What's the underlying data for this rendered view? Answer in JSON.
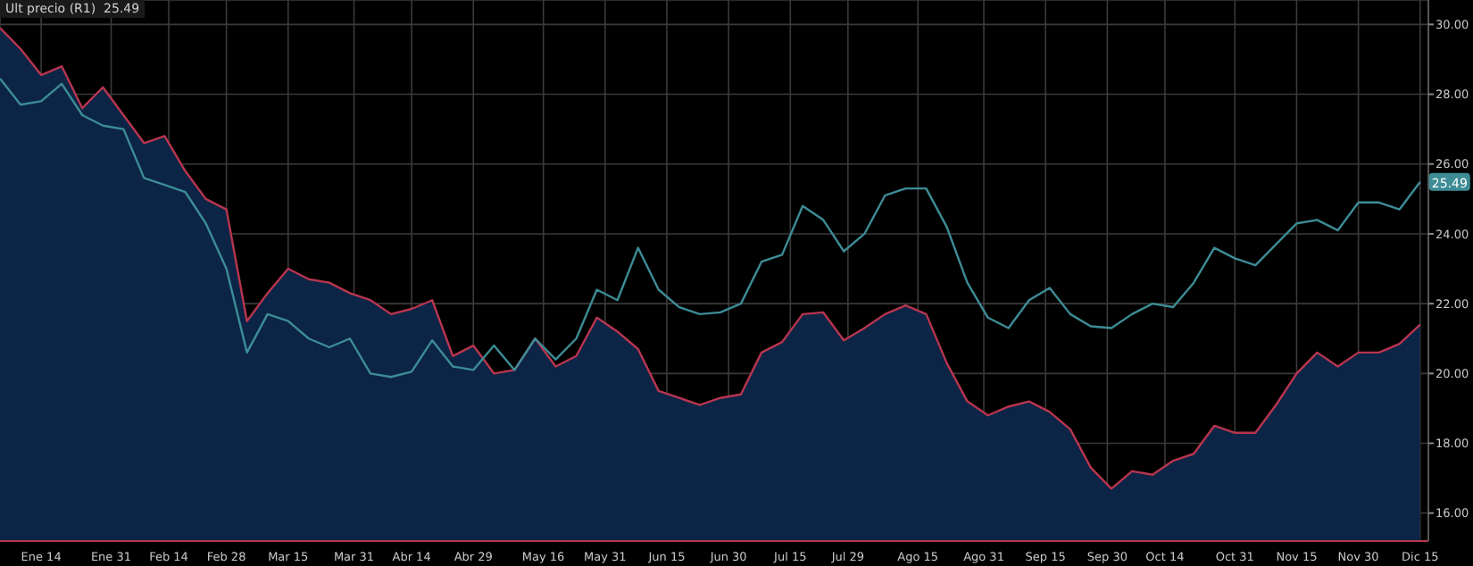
{
  "chart_data": {
    "type": "area",
    "x": [
      "--01-04",
      "--01-09",
      "--01-14",
      "--01-19",
      "--01-24",
      "--01-29",
      "--02-03",
      "--02-08",
      "--02-13",
      "--02-18",
      "--02-23",
      "--02-28",
      "--03-05",
      "--03-10",
      "--03-15",
      "--03-20",
      "--03-25",
      "--03-30",
      "--04-04",
      "--04-09",
      "--04-14",
      "--04-19",
      "--04-24",
      "--04-29",
      "--05-04",
      "--05-09",
      "--05-14",
      "--05-19",
      "--05-24",
      "--05-29",
      "--06-03",
      "--06-08",
      "--06-13",
      "--06-18",
      "--06-23",
      "--06-28",
      "--07-03",
      "--07-08",
      "--07-13",
      "--07-18",
      "--07-23",
      "--07-28",
      "--08-02",
      "--08-07",
      "--08-12",
      "--08-17",
      "--08-22",
      "--08-27",
      "--09-01",
      "--09-06",
      "--09-11",
      "--09-16",
      "--09-21",
      "--09-26",
      "--10-01",
      "--10-06",
      "--10-11",
      "--10-16",
      "--10-21",
      "--10-26",
      "--10-31",
      "--11-05",
      "--11-10",
      "--11-15",
      "--11-20",
      "--11-25",
      "--11-30",
      "--12-05",
      "--12-10",
      "--12-15"
    ],
    "series": [
      {
        "color": "#0c2445",
        "values": [
          29.9,
          29.3,
          28.55,
          28.8,
          27.6,
          28.2,
          27.4,
          26.6,
          26.8,
          25.8,
          25.0,
          24.7,
          21.5,
          22.3,
          23.0,
          22.7,
          22.6,
          22.3,
          22.1,
          21.7,
          21.85,
          22.1,
          20.5,
          20.8,
          20.0,
          20.1,
          21.0,
          20.2,
          20.5,
          21.6,
          21.2,
          20.7,
          19.5,
          19.3,
          19.1,
          19.3,
          19.4,
          20.6,
          20.9,
          21.7,
          21.75,
          20.95,
          21.3,
          21.7,
          21.95,
          21.7,
          20.3,
          19.2,
          18.8,
          19.05,
          19.2,
          18.9,
          18.4,
          17.3,
          16.7,
          17.2,
          17.1,
          17.5,
          17.7,
          18.5,
          18.3,
          18.3,
          19.1,
          20.0,
          20.6,
          20.2,
          20.6,
          20.6,
          20.85,
          21.4
        ]
      },
      {
        "type": "line",
        "color": "#b8354f",
        "values": [
          29.9,
          29.3,
          28.55,
          28.8,
          27.6,
          28.2,
          27.4,
          26.6,
          26.8,
          25.8,
          25.0,
          24.7,
          21.5,
          22.3,
          23.0,
          22.7,
          22.6,
          22.3,
          22.1,
          21.7,
          21.85,
          22.1,
          20.5,
          20.8,
          20.0,
          20.1,
          21.0,
          20.2,
          20.5,
          21.6,
          21.2,
          20.7,
          19.5,
          19.3,
          19.1,
          19.3,
          19.4,
          20.6,
          20.9,
          21.7,
          21.75,
          20.95,
          21.3,
          21.7,
          21.95,
          21.7,
          20.3,
          19.2,
          18.8,
          19.05,
          19.2,
          18.9,
          18.4,
          17.3,
          16.7,
          17.2,
          17.1,
          17.5,
          17.7,
          18.5,
          18.3,
          18.3,
          19.1,
          20.0,
          20.6,
          20.2,
          20.6,
          20.6,
          20.85,
          21.4
        ]
      },
      {
        "type": "line",
        "color": "#3d8c96",
        "values": [
          28.45,
          27.7,
          27.8,
          28.3,
          27.4,
          27.1,
          27.0,
          25.6,
          25.4,
          25.2,
          24.3,
          23.0,
          20.6,
          21.7,
          21.5,
          21.0,
          20.75,
          21.0,
          20.0,
          19.9,
          20.05,
          20.95,
          20.2,
          20.1,
          20.8,
          20.1,
          21.0,
          20.4,
          21.0,
          22.4,
          22.1,
          23.6,
          22.4,
          21.9,
          21.7,
          21.75,
          22.0,
          23.2,
          23.4,
          24.8,
          24.4,
          23.5,
          24.0,
          25.1,
          25.3,
          25.3,
          24.2,
          22.6,
          21.6,
          21.3,
          22.1,
          22.45,
          21.7,
          21.35,
          21.3,
          21.7,
          22.0,
          21.9,
          22.6,
          23.6,
          23.3,
          23.1,
          23.7,
          24.3,
          24.4,
          24.1,
          24.9,
          24.9,
          24.7,
          25.49
        ]
      }
    ],
    "xlim": [
      "--01-04",
      "--12-17"
    ],
    "xticks": [
      {
        "value": "--01-14",
        "label": "Ene 14"
      },
      {
        "value": "--01-31",
        "label": "Ene 31"
      },
      {
        "value": "--02-14",
        "label": "Feb 14"
      },
      {
        "value": "--02-28",
        "label": "Feb 28"
      },
      {
        "value": "--03-15",
        "label": "Mar 15"
      },
      {
        "value": "--03-31",
        "label": "Mar 31"
      },
      {
        "value": "--04-14",
        "label": "Abr 14"
      },
      {
        "value": "--04-29",
        "label": "Abr 29"
      },
      {
        "value": "--05-16",
        "label": "May 16"
      },
      {
        "value": "--05-31",
        "label": "May 31"
      },
      {
        "value": "--06-15",
        "label": "Jun 15"
      },
      {
        "value": "--06-30",
        "label": "Jun 30"
      },
      {
        "value": "--07-15",
        "label": "Jul 15"
      },
      {
        "value": "--07-29",
        "label": "Jul 29"
      },
      {
        "value": "--08-15",
        "label": "Ago 15"
      },
      {
        "value": "--08-31",
        "label": "Ago 31"
      },
      {
        "value": "--09-15",
        "label": "Sep 15"
      },
      {
        "value": "--09-30",
        "label": "Sep 30"
      },
      {
        "value": "--10-14",
        "label": "Oct 14"
      },
      {
        "value": "--10-31",
        "label": "Oct 31"
      },
      {
        "value": "--11-15",
        "label": "Nov 15"
      },
      {
        "value": "--11-30",
        "label": "Nov 30"
      },
      {
        "value": "--12-15",
        "label": "Dic 15"
      }
    ],
    "ylim": [
      15.2,
      30.7
    ],
    "yticks": [
      {
        "value": 16,
        "label": "16.00"
      },
      {
        "value": 18,
        "label": "18.00"
      },
      {
        "value": 20,
        "label": "20.00"
      },
      {
        "value": 22,
        "label": "22.00"
      },
      {
        "value": 24,
        "label": "24.00"
      },
      {
        "value": 26,
        "label": "26.00"
      },
      {
        "value": 28,
        "label": "28.00"
      },
      {
        "value": 30,
        "label": "30.00"
      }
    ],
    "grid": true,
    "annotations": [
      "Ult precio (R1)  25.49",
      {
        "text": "25.49",
        "x": "--12-15",
        "y": 25.49
      }
    ]
  }
}
